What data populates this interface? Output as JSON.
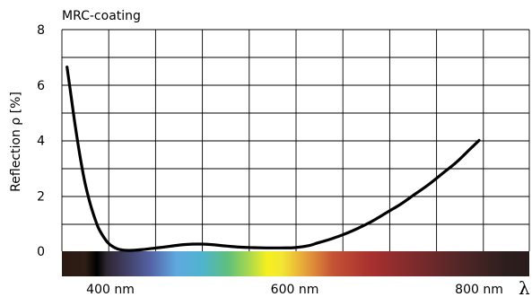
{
  "chart_data": {
    "type": "line",
    "title": "MRC-coating",
    "ylabel": "Reflection ρ [%]",
    "xlabel": "λ",
    "x_unit": "nm",
    "xlim": [
      350,
      800
    ],
    "ylim": [
      0,
      8
    ],
    "grid": true,
    "x_ticks": [
      {
        "value": 400,
        "label": "400 nm"
      },
      {
        "value": 600,
        "label": "600 nm"
      },
      {
        "value": 800,
        "label": "800 nm"
      }
    ],
    "y_ticks": [
      {
        "value": 0,
        "label": "0"
      },
      {
        "value": 2,
        "label": "2"
      },
      {
        "value": 4,
        "label": "4"
      },
      {
        "value": 6,
        "label": "6"
      },
      {
        "value": 8,
        "label": "8"
      }
    ],
    "series": [
      {
        "color": "#000000",
        "x": [
          353,
          357,
          362,
          367,
          372,
          377,
          382,
          387,
          392,
          397,
          402,
          410,
          420,
          435,
          450,
          465,
          480,
          495,
          510,
          525,
          540,
          555,
          570,
          585,
          600,
          615,
          625,
          640,
          655,
          670,
          685,
          700,
          715,
          730,
          745,
          760,
          775,
          790,
          800
        ],
        "y": [
          6.65,
          5.7,
          4.5,
          3.45,
          2.55,
          1.85,
          1.3,
          0.85,
          0.55,
          0.32,
          0.18,
          0.06,
          0.03,
          0.06,
          0.12,
          0.18,
          0.24,
          0.26,
          0.24,
          0.19,
          0.15,
          0.13,
          0.12,
          0.12,
          0.13,
          0.2,
          0.3,
          0.45,
          0.63,
          0.85,
          1.1,
          1.4,
          1.7,
          2.05,
          2.4,
          2.8,
          3.2,
          3.68,
          4.0
        ]
      }
    ],
    "spectrum_bar": true
  }
}
